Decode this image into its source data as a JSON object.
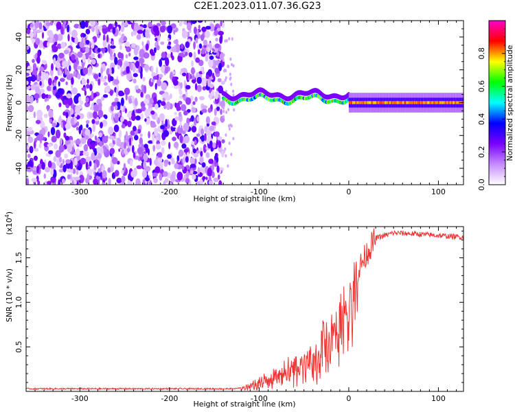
{
  "title": "C2E1.2023.011.07.36.G23",
  "chart_data": [
    {
      "type": "heatmap",
      "title": "C2E1.2023.011.07.36.G23",
      "xlabel": "Height of straight line (km)",
      "ylabel": "Frequency (Hz)",
      "xlim": [
        -360,
        128
      ],
      "ylim": [
        -50,
        50
      ],
      "x_ticks": [
        "-300",
        "-200",
        "-100",
        "0",
        "100"
      ],
      "y_ticks": [
        "-40",
        "-20",
        "0",
        "20",
        "40"
      ],
      "colorbar": {
        "label": "Normalized spectral amplitude",
        "range": [
          0,
          1
        ],
        "ticks": [
          "0.0",
          "0.2",
          "0.4",
          "0.6",
          "0.8"
        ],
        "colors": [
          "#ffffff",
          "#c58cff",
          "#7a00ff",
          "#0000ff",
          "#00ffff",
          "#00ff00",
          "#ffff00",
          "#ff0000",
          "#ff00cc"
        ]
      },
      "regions": [
        {
          "x_range": [
            -360,
            -140
          ],
          "description_level": "scattered noise 0.1-0.3",
          "freq_spread": [
            -50,
            50
          ]
        },
        {
          "x_range": [
            -140,
            0
          ],
          "center_freq": 2,
          "peak_amplitude": 0.75
        },
        {
          "x_range": [
            0,
            128
          ],
          "center_freq": 0,
          "peak_amplitude": 0.85
        }
      ]
    },
    {
      "type": "line",
      "xlabel": "Height of straight line (km)",
      "ylabel": "SNR (10 * v/v)",
      "y_scale_label": "(x10",
      "y_scale_exp": "4",
      "y_scale_close": ")",
      "xlim": [
        -360,
        128
      ],
      "ylim": [
        0,
        1.85
      ],
      "x_ticks": [
        "-300",
        "-200",
        "-100",
        "0",
        "100"
      ],
      "y_ticks": [
        "0.5",
        "1.0",
        "1.5"
      ],
      "color": "#ee3333",
      "series": [
        {
          "x": [
            -360,
            -300,
            -200,
            -130,
            -115,
            -100,
            -80,
            -60,
            -40,
            -30,
            -20,
            -10,
            0,
            5,
            10,
            20,
            30,
            50,
            70,
            100,
            128
          ],
          "y": [
            0.03,
            0.03,
            0.03,
            0.03,
            0.05,
            0.12,
            0.25,
            0.3,
            0.45,
            0.6,
            0.75,
            0.9,
            1.05,
            1.2,
            1.35,
            1.55,
            1.72,
            1.78,
            1.77,
            1.75,
            1.73
          ]
        }
      ]
    }
  ]
}
